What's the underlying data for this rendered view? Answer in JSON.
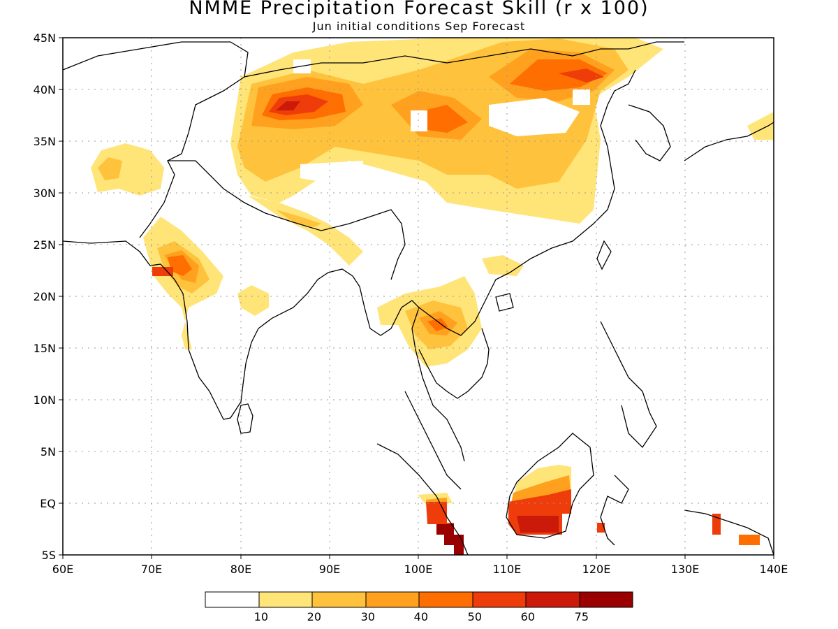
{
  "title": "NMME Precipitation Forecast Skill (r x 100)",
  "subtitle": "Jun initial conditions  Sep Forecast",
  "map": {
    "lon_range": [
      60,
      140
    ],
    "lat_range": [
      -5,
      45
    ],
    "x_ticks": [
      "60E",
      "70E",
      "80E",
      "90E",
      "100E",
      "110E",
      "120E",
      "130E",
      "140E"
    ],
    "y_ticks": [
      "45N",
      "40N",
      "35N",
      "30N",
      "25N",
      "20N",
      "15N",
      "10N",
      "5N",
      "EQ",
      "5S"
    ],
    "grid": "dotted"
  },
  "colorbar": {
    "colors": [
      "#ffffff",
      "#ffe478",
      "#ffc23c",
      "#ffa01e",
      "#ff6e00",
      "#ee3c0a",
      "#cc1a0a",
      "#9a0000"
    ],
    "labels": [
      "10",
      "20",
      "30",
      "40",
      "50",
      "60",
      "75"
    ]
  }
}
